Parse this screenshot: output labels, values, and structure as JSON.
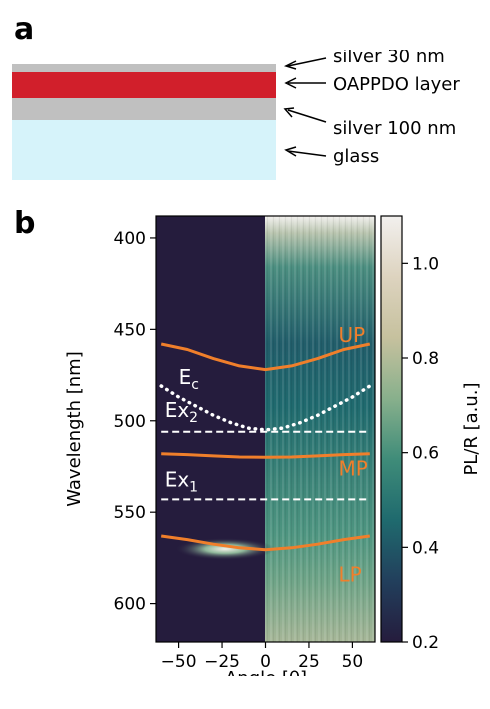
{
  "panel_a": {
    "letter": "a",
    "layers": [
      {
        "label": "silver 30 nm",
        "color": "#c0c0c0"
      },
      {
        "label": "OAPPDO layer",
        "color": "#d11f2b"
      },
      {
        "label": "silver 100 nm",
        "color": "#c0c0c0"
      },
      {
        "label": "glass",
        "color": "#d6f3fa"
      }
    ]
  },
  "panel_b": {
    "letter": "b"
  },
  "chart_data": {
    "type": "heatmap",
    "xlabel": "Angle [θ]",
    "ylabel": "Wavelength [nm]",
    "xlim": [
      -63,
      63
    ],
    "ylim": [
      621,
      388
    ],
    "y_inverted": true,
    "xticks": [
      -50,
      -25,
      0,
      25,
      50
    ],
    "xtick_labels": [
      "−50",
      "−25",
      "0",
      "25",
      "50"
    ],
    "yticks": [
      400,
      450,
      500,
      550,
      600
    ],
    "colorbar": {
      "label": "PL/R [a.u.]",
      "range": [
        0.2,
        1.1
      ],
      "ticks": [
        0.2,
        0.4,
        0.6,
        0.8,
        1.0
      ],
      "tick_labels": [
        "0.2",
        "0.4",
        "0.6",
        "0.8",
        "1.0"
      ],
      "colormap": [
        "#251c3d",
        "#223f5c",
        "#1f6a6e",
        "#3f8c79",
        "#88b08c",
        "#c6c19e",
        "#ddd3bf",
        "#f2f0ee"
      ]
    },
    "background_color": "#251c3d",
    "series": [
      {
        "name": "UP",
        "style": "solid",
        "color": "#f07f2b",
        "x": [
          -60,
          -45,
          -30,
          -15,
          0,
          15,
          30,
          45,
          60
        ],
        "y": [
          458,
          461,
          466,
          470,
          472,
          470,
          466,
          461,
          458
        ]
      },
      {
        "name": "MP",
        "style": "solid",
        "color": "#f07f2b",
        "x": [
          -60,
          -45,
          -30,
          -15,
          0,
          15,
          30,
          45,
          60
        ],
        "y": [
          518,
          518.5,
          519.2,
          519.8,
          520,
          519.8,
          519.2,
          518.5,
          518
        ]
      },
      {
        "name": "LP",
        "style": "solid",
        "color": "#f07f2b",
        "x": [
          -60,
          -45,
          -30,
          -15,
          0,
          15,
          30,
          45,
          60
        ],
        "y": [
          563,
          565,
          567.5,
          569.5,
          570.5,
          569.5,
          567.5,
          565,
          563
        ]
      },
      {
        "name": "Ec",
        "style": "dotted",
        "color": "#ffffff",
        "x": [
          -60,
          -50,
          -40,
          -30,
          -20,
          -10,
          0,
          10,
          20,
          30,
          40,
          50,
          60
        ],
        "y": [
          481,
          487,
          492,
          497,
          501,
          504,
          505,
          504,
          501,
          497,
          492,
          487,
          481
        ]
      },
      {
        "name": "Ex2",
        "style": "dashed",
        "color": "#ffffff",
        "x": [
          -60,
          60
        ],
        "y": [
          506,
          506
        ]
      },
      {
        "name": "Ex1",
        "style": "dashed",
        "color": "#ffffff",
        "x": [
          -60,
          60
        ],
        "y": [
          543,
          543
        ]
      }
    ],
    "annotations": [
      {
        "text": "UP",
        "x": 42,
        "y": 457,
        "color": "#f07f2b"
      },
      {
        "text": "MP",
        "x": 42,
        "y": 530,
        "color": "#f07f2b"
      },
      {
        "text": "LP",
        "x": 42,
        "y": 588,
        "color": "#f07f2b"
      },
      {
        "text": "E",
        "sub": "c",
        "x": -50,
        "y": 480,
        "color": "#ffffff"
      },
      {
        "text": "Ex",
        "sub": "2",
        "x": -58,
        "y": 498,
        "color": "#ffffff"
      },
      {
        "text": "Ex",
        "sub": "1",
        "x": -58,
        "y": 536,
        "color": "#ffffff"
      }
    ]
  }
}
